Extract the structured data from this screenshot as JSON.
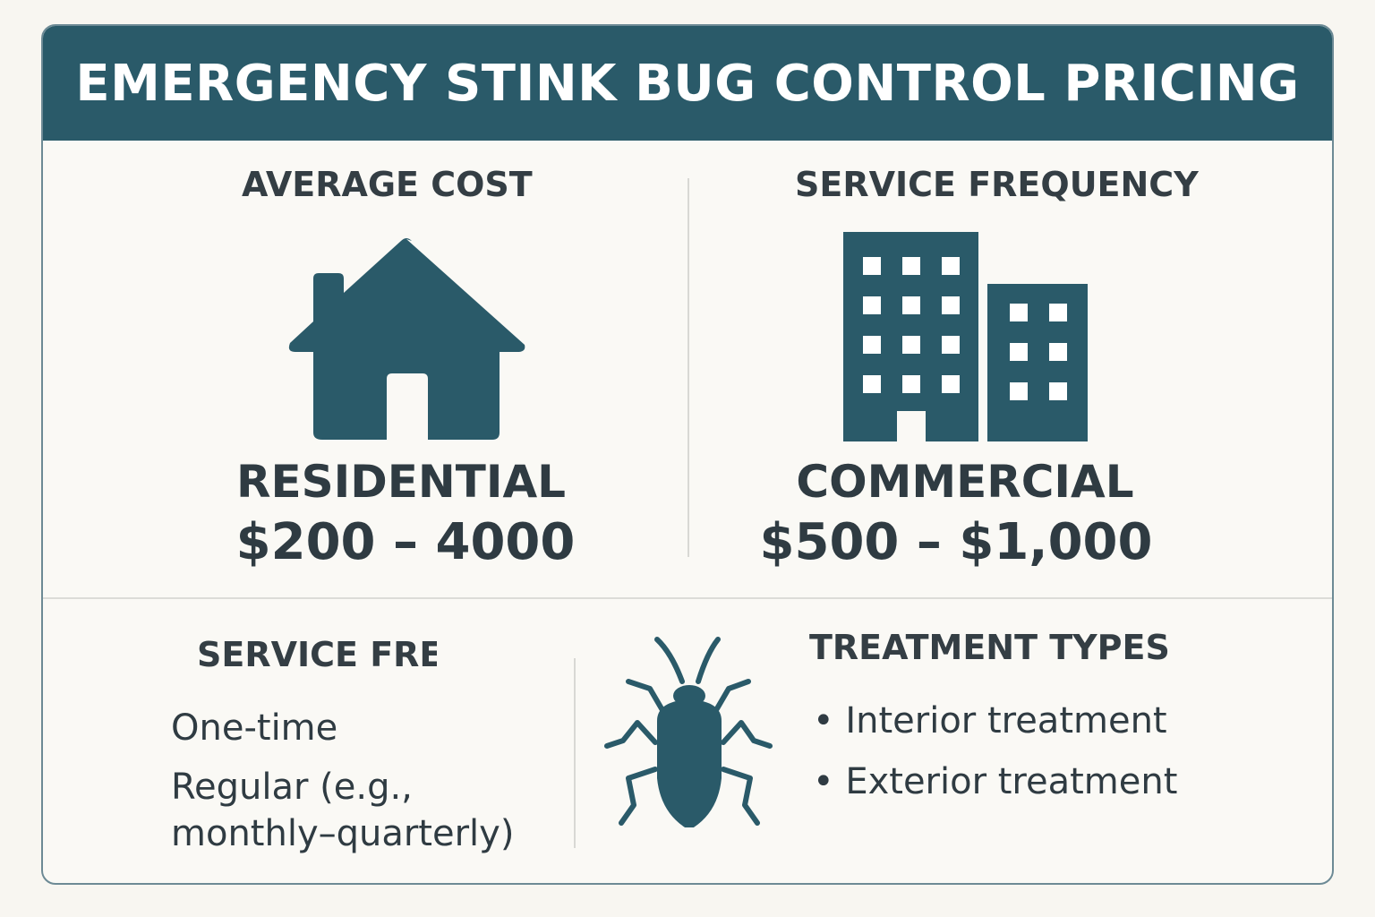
{
  "title": "EMERGENCY STINK BUG CONTROL PRICING",
  "colors": {
    "header_bg": "#2a5a69",
    "icon": "#2a5a69",
    "text": "#2f3b42",
    "background": "#f8f6f1"
  },
  "residential": {
    "heading": "AVERAGE COST",
    "icon": "house-icon",
    "label": "RESIDENTIAL",
    "price": "$200 – 4000"
  },
  "commercial": {
    "heading": "SERVICE FREQUENCY",
    "icon": "office-buildings-icon",
    "label": "COMMERCIAL",
    "price": "$500 – $1,000"
  },
  "frequency": {
    "heading": "SERVICE FRE",
    "items": [
      "One-time",
      "Regular (e.g.,",
      "monthly–quarterly)"
    ]
  },
  "treatment": {
    "heading": "TREATMENT TYPES",
    "icon": "stink-bug-icon",
    "items": [
      "Interior treatment",
      "Exterior treatment"
    ]
  }
}
